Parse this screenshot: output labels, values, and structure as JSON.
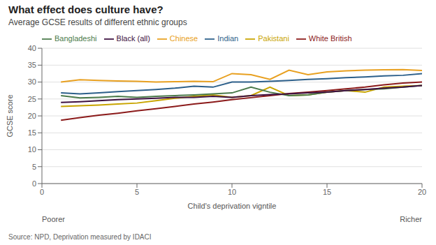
{
  "chart_data": {
    "type": "line",
    "title": "What effect does culture have?",
    "subtitle": "Average GCSE results of different ethnic groups",
    "xlabel": "Child's deprivation vigntile",
    "ylabel": "GCSE score",
    "source": "Source: NPD, Deprivation measured by IDACI",
    "annotations": [
      "Poorer",
      "Richer"
    ],
    "x": [
      1,
      2,
      3,
      4,
      5,
      6,
      7,
      8,
      9,
      10,
      11,
      12,
      13,
      14,
      15,
      16,
      17,
      18,
      19,
      20
    ],
    "series": [
      {
        "name": "Chinese",
        "color": "#e8a020",
        "values": [
          30.0,
          30.7,
          30.5,
          30.3,
          30.2,
          30.0,
          30.1,
          30.2,
          30.1,
          32.5,
          32.2,
          30.8,
          33.5,
          32.2,
          33.0,
          33.3,
          33.5,
          33.6,
          33.7,
          33.4
        ]
      },
      {
        "name": "White British",
        "color": "#8b1a1a",
        "values": [
          18.7,
          19.5,
          20.2,
          20.8,
          21.5,
          22.1,
          22.8,
          23.5,
          24.1,
          24.8,
          25.4,
          26.0,
          26.6,
          27.0,
          27.5,
          28.0,
          28.5,
          29.2,
          29.7,
          30.0
        ]
      },
      {
        "name": "Indian",
        "color": "#2c5f8a",
        "values": [
          26.8,
          26.5,
          26.8,
          27.2,
          27.5,
          27.8,
          28.2,
          28.8,
          28.5,
          30.0,
          30.0,
          30.2,
          30.5,
          30.8,
          31.0,
          31.3,
          31.5,
          31.8,
          32.0,
          32.5
        ]
      },
      {
        "name": "Pakistani",
        "color": "#c8a400",
        "values": [
          22.8,
          23.0,
          23.2,
          23.5,
          23.8,
          24.5,
          25.2,
          25.8,
          26.2,
          25.5,
          26.0,
          28.5,
          26.0,
          26.2,
          27.0,
          27.5,
          27.0,
          28.5,
          28.8,
          29.0
        ]
      },
      {
        "name": "Bangladeshi",
        "color": "#4a7a4a",
        "values": [
          26.0,
          25.3,
          25.5,
          25.8,
          25.5,
          25.8,
          26.0,
          26.2,
          26.5,
          26.8,
          28.5,
          27.0,
          26.0,
          26.2,
          27.0,
          27.5,
          27.8,
          28.0,
          28.5,
          29.0
        ]
      },
      {
        "name": "Black (all)",
        "color": "#3d1040",
        "values": [
          24.0,
          24.2,
          24.5,
          24.8,
          25.0,
          25.2,
          25.5,
          25.5,
          25.8,
          25.5,
          26.0,
          26.3,
          26.5,
          26.8,
          27.0,
          27.5,
          27.8,
          28.2,
          28.5,
          29.0
        ]
      }
    ],
    "xlim": [
      0,
      20
    ],
    "ylim": [
      0,
      40
    ],
    "xticks": [
      0,
      5,
      10,
      15,
      20
    ],
    "yticks": [
      0,
      5,
      10,
      15,
      20,
      25,
      30,
      35,
      40
    ],
    "grid": true,
    "legend": "top"
  }
}
